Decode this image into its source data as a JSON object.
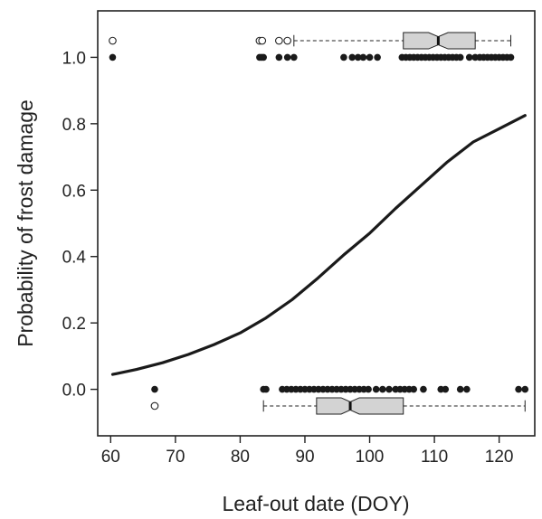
{
  "chart_data": {
    "type": "scatter",
    "xlabel": "Leaf-out date (DOY)",
    "ylabel": "Probability of frost damage",
    "xlim": [
      58,
      125.5
    ],
    "ylim": [
      -0.14,
      1.14
    ],
    "xticks": [
      60,
      70,
      80,
      90,
      100,
      110,
      120
    ],
    "yticks": [
      0.0,
      0.2,
      0.4,
      0.6,
      0.8,
      1.0
    ],
    "xtick_labels": [
      "60",
      "70",
      "80",
      "90",
      "100",
      "110",
      "120"
    ],
    "ytick_labels": [
      "0.0",
      "0.2",
      "0.4",
      "0.6",
      "0.8",
      "1.0"
    ],
    "grid": false,
    "logistic_curve": {
      "x": [
        60.3,
        64,
        68,
        72,
        76,
        80,
        84,
        88,
        92,
        96,
        100,
        104,
        108,
        112,
        116,
        120,
        124
      ],
      "y": [
        0.045,
        0.06,
        0.08,
        0.105,
        0.135,
        0.17,
        0.215,
        0.27,
        0.335,
        0.405,
        0.47,
        0.545,
        0.615,
        0.685,
        0.745,
        0.785,
        0.825
      ]
    },
    "points_damaged": {
      "y": 1.0,
      "x": [
        60.3,
        83.0,
        83.3,
        83.6,
        86.0,
        87.3,
        88.3,
        96.0,
        97.3,
        98.2,
        99.0,
        100.0,
        101.2,
        105.0,
        105.6,
        106.2,
        106.8,
        107.4,
        108.0,
        108.6,
        109.2,
        109.8,
        110.4,
        111.0,
        111.6,
        112.2,
        112.8,
        113.4,
        114.0,
        115.4,
        116.3,
        117.0,
        117.6,
        118.2,
        118.8,
        119.4,
        120.0,
        120.6,
        121.2,
        121.8
      ]
    },
    "points_undamaged": {
      "y": 0.0,
      "x": [
        66.8,
        83.6,
        84.0,
        86.5,
        87.2,
        87.9,
        88.6,
        89.3,
        90.0,
        90.7,
        91.4,
        92.1,
        92.8,
        93.5,
        94.2,
        94.9,
        95.6,
        96.3,
        97.0,
        97.7,
        98.4,
        99.1,
        99.8,
        101.0,
        102.0,
        103.0,
        104.0,
        104.7,
        105.4,
        106.1,
        106.8,
        108.3,
        111.0,
        111.7,
        114.0,
        115.0,
        123.0,
        124.0
      ]
    },
    "boxplot_damaged": {
      "y": 1.05,
      "whisker_low": 88.3,
      "q1": 105.2,
      "median": 110.6,
      "q3": 116.3,
      "whisker_high": 121.8,
      "notch_low": 109.1,
      "notch_high": 112.1,
      "outliers": [
        60.3,
        83.0,
        83.4,
        86.0,
        87.3
      ]
    },
    "boxplot_undamaged": {
      "y": -0.05,
      "whisker_low": 83.6,
      "q1": 91.8,
      "median": 97.0,
      "q3": 105.2,
      "whisker_high": 124.0,
      "notch_low": 95.6,
      "notch_high": 98.4,
      "outliers": [
        66.8
      ]
    }
  }
}
